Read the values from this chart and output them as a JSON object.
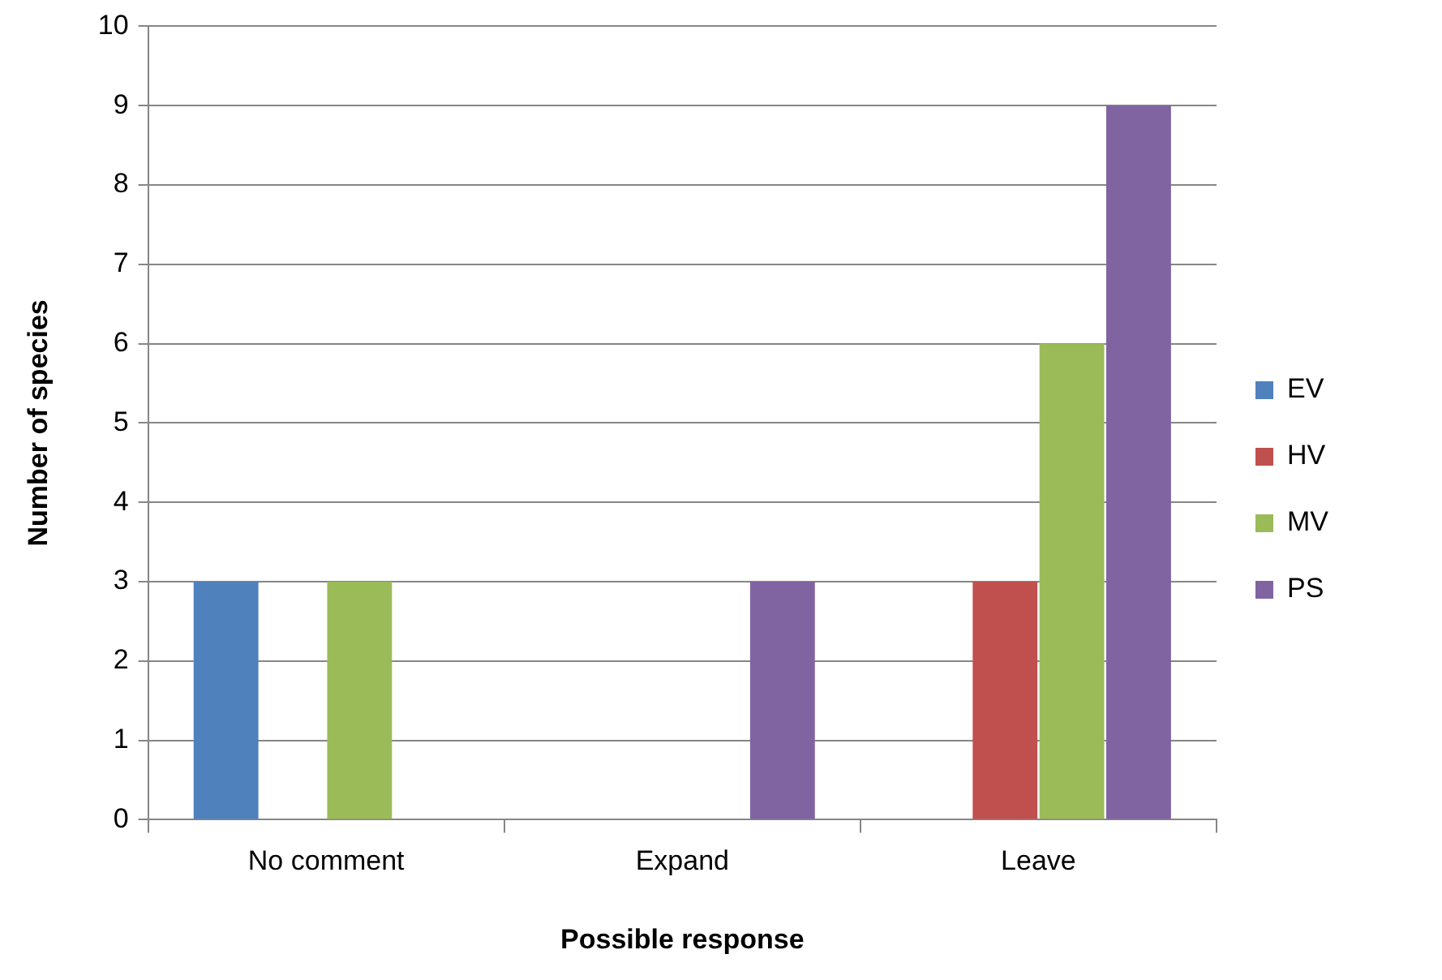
{
  "chart_data": {
    "type": "bar",
    "xlabel": "Possible response",
    "ylabel": "Number of species",
    "categories": [
      "No comment",
      "Expand",
      "Leave"
    ],
    "series": [
      {
        "name": "EV",
        "color": "#4f81bd",
        "values": [
          3,
          0,
          0
        ]
      },
      {
        "name": "HV",
        "color": "#c0504d",
        "values": [
          0,
          0,
          3
        ]
      },
      {
        "name": "MV",
        "color": "#9bbb59",
        "values": [
          3,
          0,
          6
        ]
      },
      {
        "name": "PS",
        "color": "#8064a2",
        "values": [
          0,
          3,
          9
        ]
      }
    ],
    "ylim": [
      0,
      10
    ],
    "yticks": [
      0,
      1,
      2,
      3,
      4,
      5,
      6,
      7,
      8,
      9,
      10
    ],
    "grid": "y",
    "legend": "right"
  }
}
